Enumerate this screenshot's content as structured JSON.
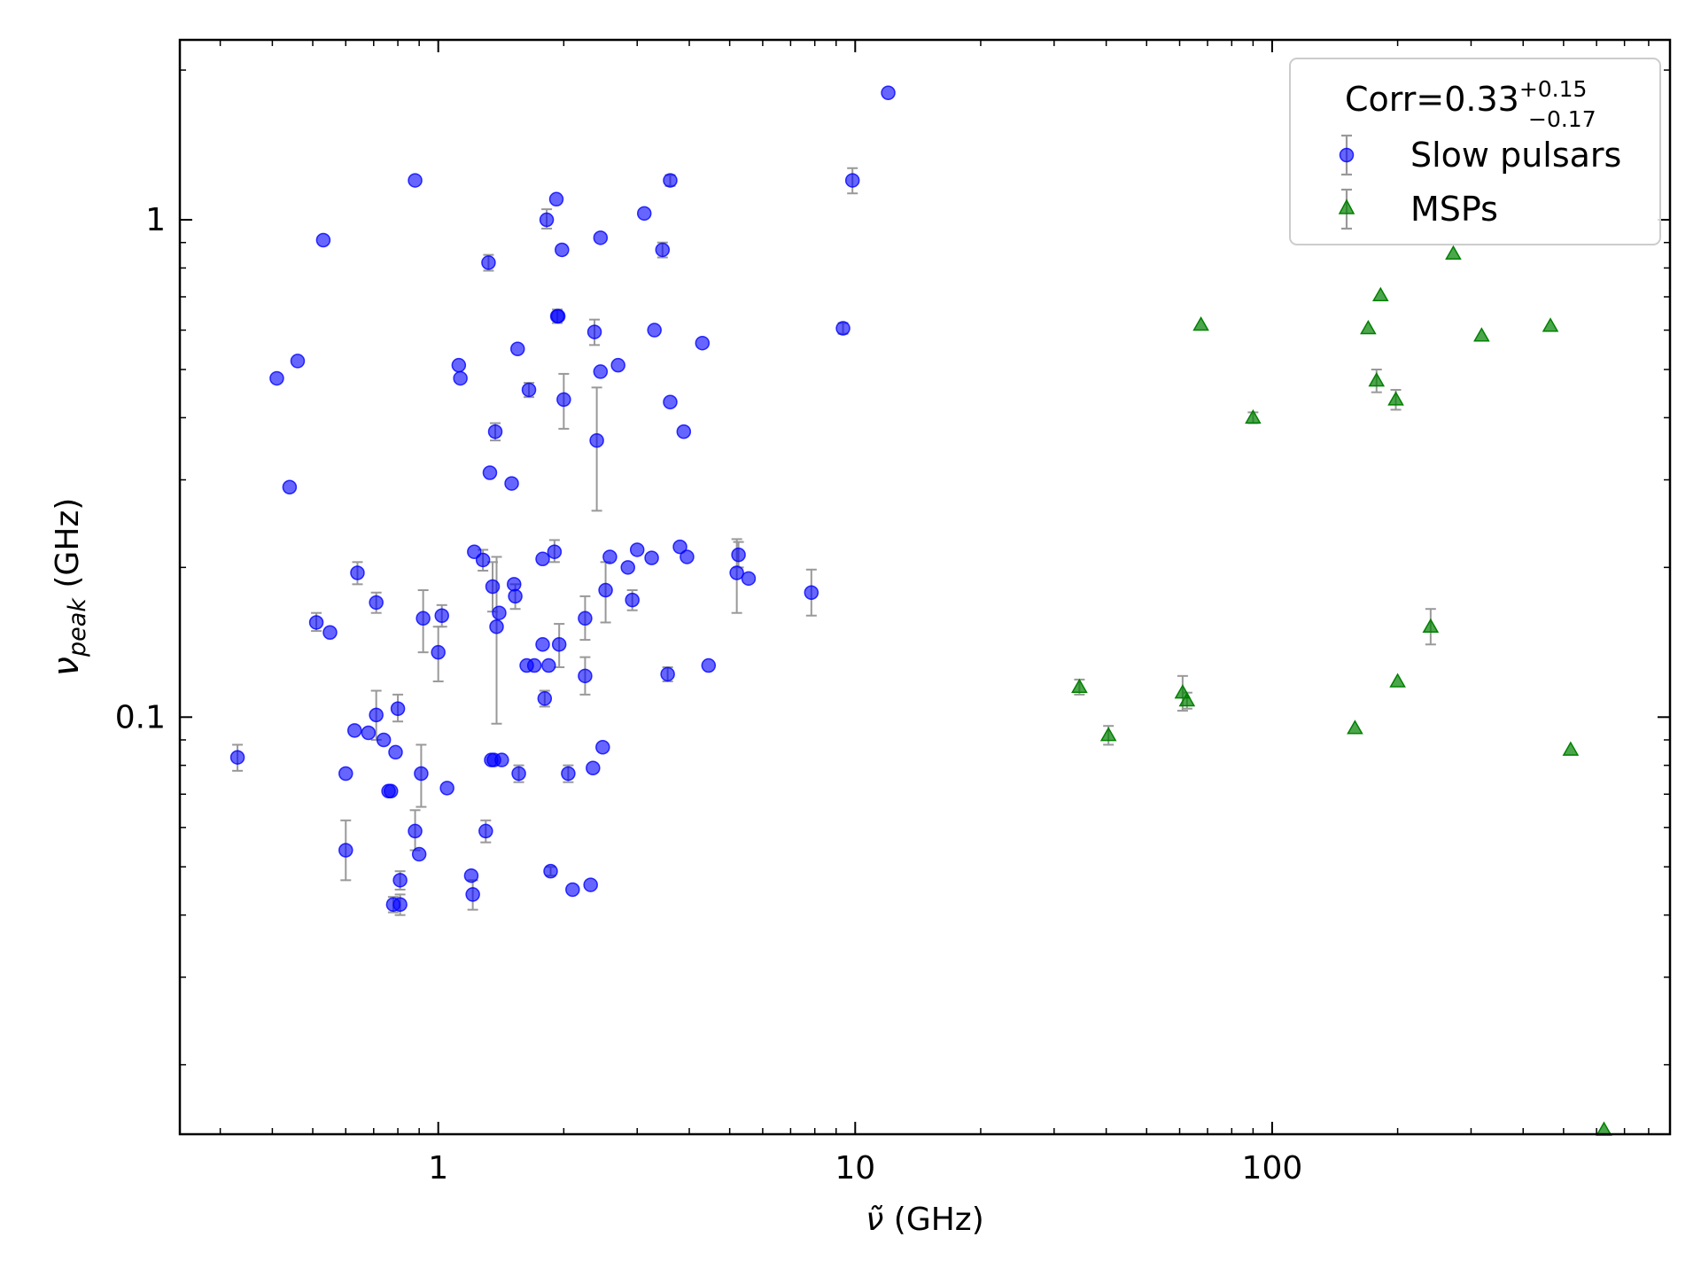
{
  "chart_data": {
    "type": "scatter",
    "x_scale": "log",
    "y_scale": "log",
    "xlim": [
      0.24,
      900
    ],
    "ylim": [
      0.0145,
      2.3
    ],
    "xlabel_symbol": "ν̃",
    "xlabel_unit": " (GHz)",
    "ylabel_symbol": "ν",
    "ylabel_sub": "peak",
    "ylabel_unit": " (GHz)",
    "x_ticks": [
      {
        "value": 1,
        "label": "1"
      },
      {
        "value": 10,
        "label": "10"
      },
      {
        "value": 100,
        "label": "100"
      }
    ],
    "y_ticks": [
      {
        "value": 0.1,
        "label": "0.1"
      },
      {
        "value": 1,
        "label": "1"
      }
    ],
    "annotation": {
      "prefix": "Corr=0.33",
      "sup": "+0.15",
      "sub": "−0.17"
    },
    "legend_position": "top-right",
    "series": [
      {
        "name": "Slow pulsars",
        "marker": "circle",
        "color": "#0000ff",
        "points": [
          {
            "x": 0.33,
            "y": 0.083,
            "err": [
              0.078,
              0.088
            ]
          },
          {
            "x": 0.41,
            "y": 0.48
          },
          {
            "x": 0.44,
            "y": 0.29
          },
          {
            "x": 0.46,
            "y": 0.52
          },
          {
            "x": 0.51,
            "y": 0.155,
            "err": [
              0.149,
              0.162
            ]
          },
          {
            "x": 0.53,
            "y": 0.91
          },
          {
            "x": 0.55,
            "y": 0.148
          },
          {
            "x": 0.6,
            "y": 0.054,
            "err": [
              0.047,
              0.062
            ]
          },
          {
            "x": 0.6,
            "y": 0.077
          },
          {
            "x": 0.63,
            "y": 0.094
          },
          {
            "x": 0.64,
            "y": 0.195,
            "err": [
              0.185,
              0.205
            ]
          },
          {
            "x": 0.68,
            "y": 0.093
          },
          {
            "x": 0.71,
            "y": 0.101,
            "err": [
              0.09,
              0.113
            ]
          },
          {
            "x": 0.71,
            "y": 0.17,
            "err": [
              0.162,
              0.178
            ]
          },
          {
            "x": 0.74,
            "y": 0.09
          },
          {
            "x": 0.76,
            "y": 0.071
          },
          {
            "x": 0.77,
            "y": 0.071
          },
          {
            "x": 0.78,
            "y": 0.042,
            "err": [
              0.0405,
              0.0435
            ]
          },
          {
            "x": 0.79,
            "y": 0.085
          },
          {
            "x": 0.8,
            "y": 0.104,
            "err": [
              0.098,
              0.111
            ]
          },
          {
            "x": 0.81,
            "y": 0.047,
            "err": [
              0.045,
              0.049
            ]
          },
          {
            "x": 0.81,
            "y": 0.042,
            "err": [
              0.04,
              0.044
            ]
          },
          {
            "x": 0.88,
            "y": 0.059,
            "err": [
              0.054,
              0.065
            ]
          },
          {
            "x": 0.88,
            "y": 1.2
          },
          {
            "x": 0.9,
            "y": 0.053
          },
          {
            "x": 0.91,
            "y": 0.077,
            "err": [
              0.066,
              0.088
            ]
          },
          {
            "x": 0.92,
            "y": 0.158,
            "err": [
              0.135,
              0.18
            ]
          },
          {
            "x": 1.0,
            "y": 0.135,
            "err": [
              0.118,
              0.152
            ]
          },
          {
            "x": 1.02,
            "y": 0.16,
            "err": [
              0.152,
              0.168
            ]
          },
          {
            "x": 1.05,
            "y": 0.072
          },
          {
            "x": 1.12,
            "y": 0.51
          },
          {
            "x": 1.13,
            "y": 0.48
          },
          {
            "x": 1.2,
            "y": 0.048
          },
          {
            "x": 1.21,
            "y": 0.044,
            "err": [
              0.041,
              0.047
            ]
          },
          {
            "x": 1.22,
            "y": 0.215
          },
          {
            "x": 1.28,
            "y": 0.207,
            "err": [
              0.197,
              0.217
            ]
          },
          {
            "x": 1.3,
            "y": 0.059,
            "err": [
              0.056,
              0.062
            ]
          },
          {
            "x": 1.32,
            "y": 0.82,
            "err": [
              0.79,
              0.85
            ]
          },
          {
            "x": 1.33,
            "y": 0.31
          },
          {
            "x": 1.35,
            "y": 0.183,
            "err": [
              0.163,
              0.205
            ]
          },
          {
            "x": 1.34,
            "y": 0.082
          },
          {
            "x": 1.36,
            "y": 0.082
          },
          {
            "x": 1.37,
            "y": 0.375,
            "err": [
              0.36,
              0.39
            ]
          },
          {
            "x": 1.38,
            "y": 0.152,
            "err": [
              0.097,
              0.21
            ]
          },
          {
            "x": 1.4,
            "y": 0.162
          },
          {
            "x": 1.42,
            "y": 0.082
          },
          {
            "x": 1.5,
            "y": 0.295
          },
          {
            "x": 1.52,
            "y": 0.185
          },
          {
            "x": 1.53,
            "y": 0.175,
            "err": [
              0.165,
              0.185
            ]
          },
          {
            "x": 1.55,
            "y": 0.55
          },
          {
            "x": 1.56,
            "y": 0.077,
            "err": [
              0.074,
              0.08
            ]
          },
          {
            "x": 1.63,
            "y": 0.127
          },
          {
            "x": 1.65,
            "y": 0.455,
            "err": [
              0.44,
              0.47
            ]
          },
          {
            "x": 1.7,
            "y": 0.127
          },
          {
            "x": 1.78,
            "y": 0.208
          },
          {
            "x": 1.78,
            "y": 0.14
          },
          {
            "x": 1.8,
            "y": 0.109,
            "err": [
              0.105,
              0.113
            ]
          },
          {
            "x": 1.82,
            "y": 1.0,
            "err": [
              0.96,
              1.05
            ]
          },
          {
            "x": 1.84,
            "y": 0.127
          },
          {
            "x": 1.86,
            "y": 0.049,
            "err": [
              0.048,
              0.05
            ]
          },
          {
            "x": 1.9,
            "y": 0.215,
            "err": [
              0.205,
              0.227
            ]
          },
          {
            "x": 1.92,
            "y": 1.1
          },
          {
            "x": 1.93,
            "y": 0.64,
            "err": [
              0.62,
              0.66
            ]
          },
          {
            "x": 1.94,
            "y": 0.64
          },
          {
            "x": 1.95,
            "y": 0.14,
            "err": [
              0.126,
              0.154
            ]
          },
          {
            "x": 1.98,
            "y": 0.87
          },
          {
            "x": 2.0,
            "y": 0.435,
            "err": [
              0.38,
              0.49
            ]
          },
          {
            "x": 2.05,
            "y": 0.077,
            "err": [
              0.074,
              0.08
            ]
          },
          {
            "x": 2.1,
            "y": 0.045
          },
          {
            "x": 2.25,
            "y": 0.158,
            "err": [
              0.143,
              0.175
            ]
          },
          {
            "x": 2.25,
            "y": 0.121,
            "err": [
              0.111,
              0.132
            ]
          },
          {
            "x": 2.32,
            "y": 0.046
          },
          {
            "x": 2.35,
            "y": 0.079
          },
          {
            "x": 2.37,
            "y": 0.595,
            "err": [
              0.56,
              0.63
            ]
          },
          {
            "x": 2.4,
            "y": 0.36,
            "err": [
              0.26,
              0.46
            ]
          },
          {
            "x": 2.45,
            "y": 0.92
          },
          {
            "x": 2.45,
            "y": 0.495
          },
          {
            "x": 2.48,
            "y": 0.087
          },
          {
            "x": 2.52,
            "y": 0.18,
            "err": [
              0.155,
              0.205
            ]
          },
          {
            "x": 2.58,
            "y": 0.21
          },
          {
            "x": 2.7,
            "y": 0.51
          },
          {
            "x": 2.85,
            "y": 0.2
          },
          {
            "x": 2.92,
            "y": 0.172,
            "err": [
              0.164,
              0.18
            ]
          },
          {
            "x": 3.0,
            "y": 0.217
          },
          {
            "x": 3.12,
            "y": 1.03
          },
          {
            "x": 3.25,
            "y": 0.209
          },
          {
            "x": 3.3,
            "y": 0.6
          },
          {
            "x": 3.45,
            "y": 0.87,
            "err": [
              0.84,
              0.9
            ]
          },
          {
            "x": 3.55,
            "y": 0.122,
            "err": [
              0.118,
              0.126
            ]
          },
          {
            "x": 3.6,
            "y": 1.2,
            "err": [
              1.17,
              1.23
            ]
          },
          {
            "x": 3.6,
            "y": 0.43
          },
          {
            "x": 3.8,
            "y": 0.22
          },
          {
            "x": 3.88,
            "y": 0.375
          },
          {
            "x": 3.95,
            "y": 0.21
          },
          {
            "x": 4.3,
            "y": 0.565
          },
          {
            "x": 4.45,
            "y": 0.127
          },
          {
            "x": 5.2,
            "y": 0.195,
            "err": [
              0.162,
              0.228
            ]
          },
          {
            "x": 5.25,
            "y": 0.212,
            "err": [
              0.2,
              0.225
            ]
          },
          {
            "x": 5.55,
            "y": 0.19
          },
          {
            "x": 7.85,
            "y": 0.178,
            "err": [
              0.16,
              0.198
            ]
          },
          {
            "x": 9.35,
            "y": 0.605,
            "err": [
              0.59,
              0.62
            ]
          },
          {
            "x": 9.85,
            "y": 1.2,
            "err": [
              1.13,
              1.27
            ]
          },
          {
            "x": 12.0,
            "y": 1.8
          }
        ]
      },
      {
        "name": "MSPs",
        "marker": "triangle",
        "color": "#008000",
        "points": [
          {
            "x": 34.5,
            "y": 0.115,
            "err": [
              0.111,
              0.119
            ]
          },
          {
            "x": 40.5,
            "y": 0.092,
            "err": [
              0.088,
              0.096
            ]
          },
          {
            "x": 61.0,
            "y": 0.112,
            "err": [
              0.103,
              0.121
            ]
          },
          {
            "x": 62.5,
            "y": 0.108,
            "err": [
              0.104,
              0.112
            ]
          },
          {
            "x": 67.5,
            "y": 0.615
          },
          {
            "x": 90.0,
            "y": 0.4,
            "err": [
              0.39,
              0.41
            ]
          },
          {
            "x": 158.0,
            "y": 0.095
          },
          {
            "x": 170.0,
            "y": 0.605
          },
          {
            "x": 178.0,
            "y": 0.475,
            "err": [
              0.45,
              0.5
            ]
          },
          {
            "x": 182.0,
            "y": 0.705
          },
          {
            "x": 198.0,
            "y": 0.435,
            "err": [
              0.415,
              0.455
            ]
          },
          {
            "x": 200.0,
            "y": 0.118
          },
          {
            "x": 240.0,
            "y": 0.152,
            "err": [
              0.14,
              0.165
            ]
          },
          {
            "x": 272.0,
            "y": 0.855
          },
          {
            "x": 318.0,
            "y": 0.585
          },
          {
            "x": 465.0,
            "y": 0.612
          },
          {
            "x": 520.0,
            "y": 0.086
          },
          {
            "x": 625.0,
            "y": 0.0148
          }
        ]
      }
    ]
  }
}
